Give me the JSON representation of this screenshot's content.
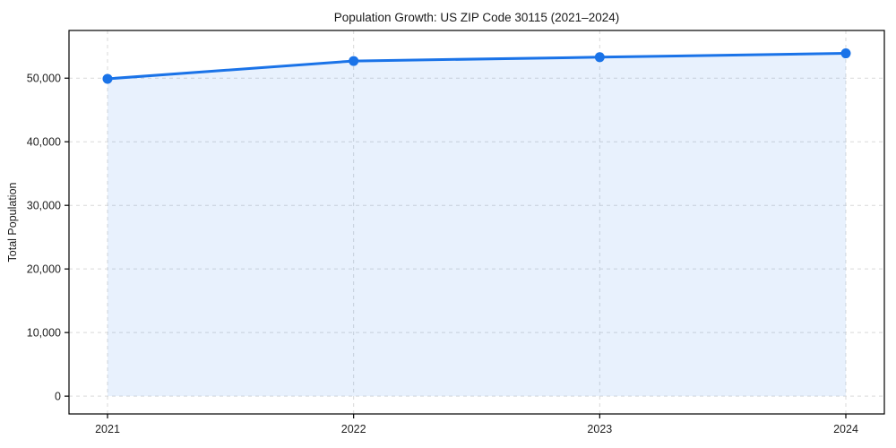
{
  "chart_data": {
    "type": "area",
    "title": "Population Growth: US ZIP Code 30115 (2021–2024)",
    "xlabel": "",
    "ylabel": "Total Population",
    "categories": [
      "2021",
      "2022",
      "2023",
      "2024"
    ],
    "series": [
      {
        "name": "Total Population",
        "values": [
          49900,
          52700,
          53300,
          53900
        ]
      }
    ],
    "yticks": [
      0,
      10000,
      20000,
      30000,
      40000,
      50000
    ],
    "ylim": [
      -2800,
      57500
    ],
    "grid": "both-dashed",
    "legend": "none",
    "colors": {
      "line": "#1a73e8",
      "marker": "#1a73e8",
      "area_fill": "rgba(26,115,232,0.10)",
      "gridline": "#d9d9d9",
      "spine": "#000000",
      "text": "#1a1a1a",
      "background": "#ffffff"
    },
    "marker_style": "circle",
    "line_width": 3
  }
}
